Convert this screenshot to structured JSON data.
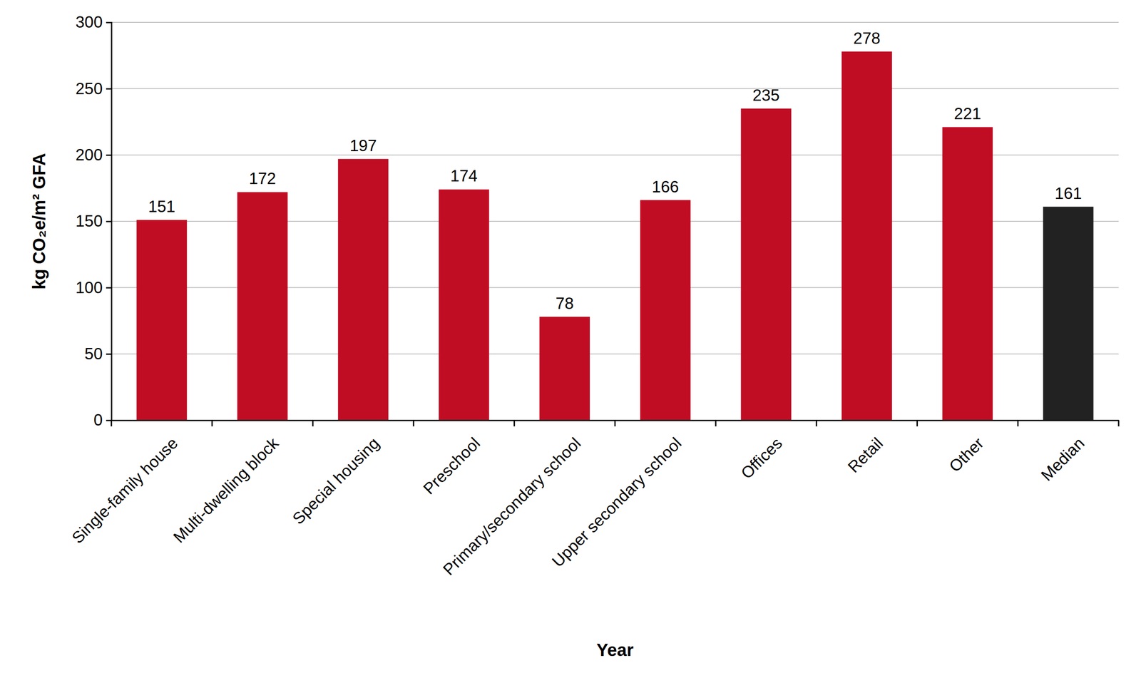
{
  "chart_data": {
    "type": "bar",
    "x_label": "Year",
    "y_label": "kg CO₂e/m² GFA",
    "categories": [
      "Single-family house",
      "Multi-dwelling block",
      "Special housing",
      "Preschool",
      "Primary/secondary school",
      "Upper secondary school",
      "Offices",
      "Retail",
      "Other",
      "Median"
    ],
    "values": [
      151,
      172,
      197,
      174,
      78,
      166,
      235,
      278,
      221,
      161
    ],
    "colors": [
      "#c00d24",
      "#c00d24",
      "#c00d24",
      "#c00d24",
      "#c00d24",
      "#c00d24",
      "#c00d24",
      "#c00d24",
      "#c00d24",
      "#222222"
    ],
    "ylim": [
      0,
      300
    ],
    "yticks": [
      0,
      50,
      100,
      150,
      200,
      250,
      300
    ],
    "grid": true,
    "data_labels": true
  }
}
